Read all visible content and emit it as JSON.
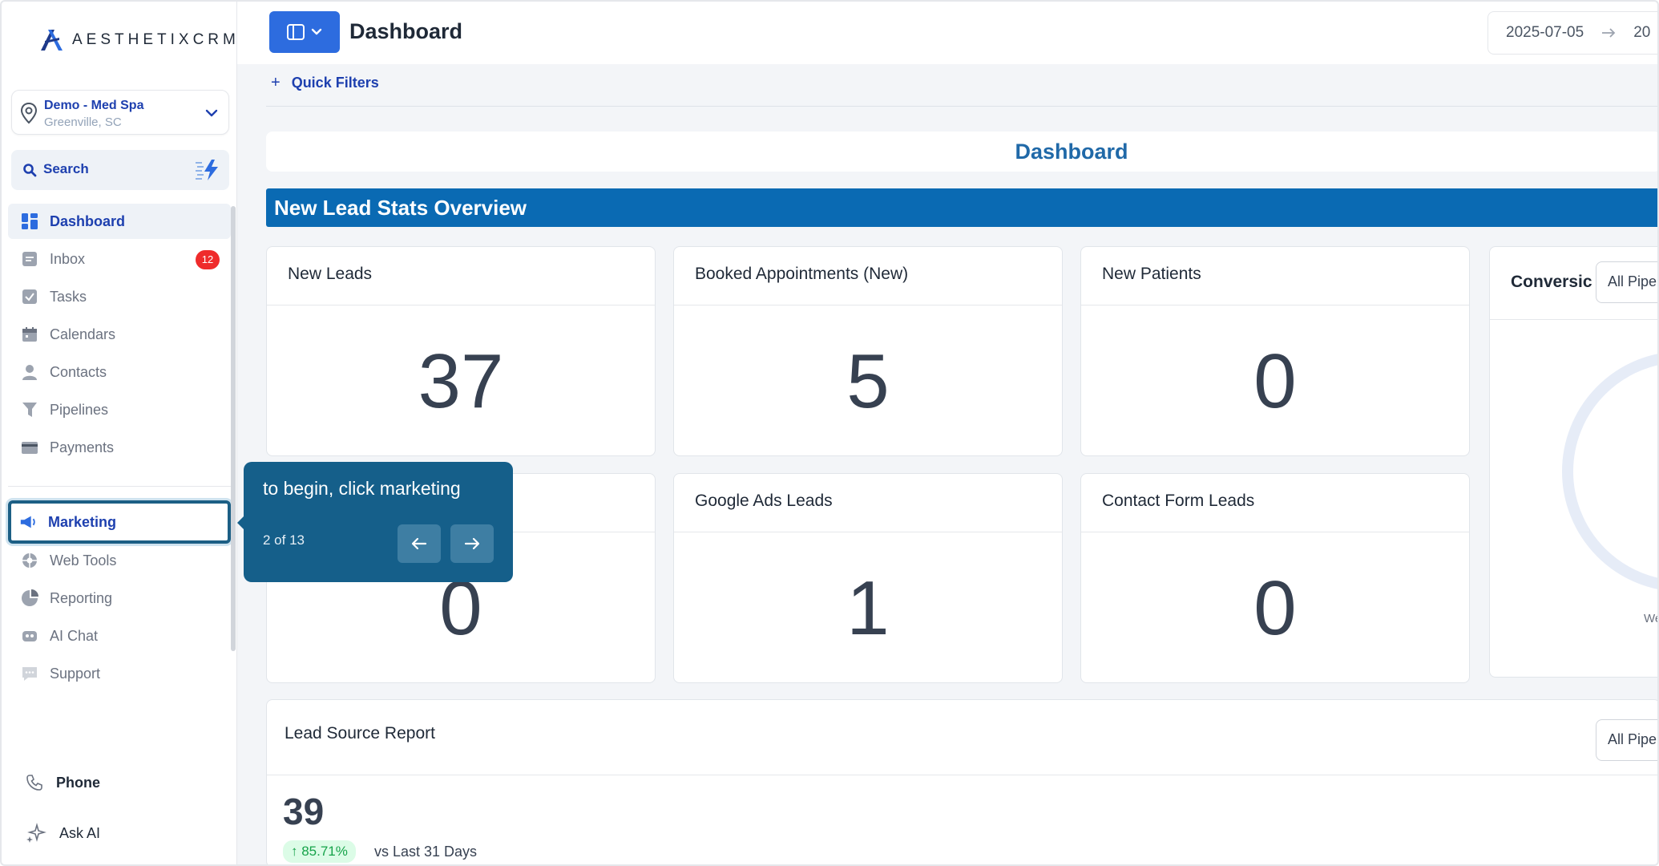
{
  "app": {
    "logo_text": "AESTHETIXCRM",
    "page_title": "Dashboard"
  },
  "location": {
    "name": "Demo - Med Spa",
    "city": "Greenville, SC"
  },
  "search": {
    "label": "Search"
  },
  "sidebar": {
    "items": [
      {
        "label": "Dashboard",
        "icon": "dashboard-icon"
      },
      {
        "label": "Inbox",
        "icon": "inbox-icon",
        "badge": "12"
      },
      {
        "label": "Tasks",
        "icon": "tasks-icon"
      },
      {
        "label": "Calendars",
        "icon": "calendar-icon"
      },
      {
        "label": "Contacts",
        "icon": "contacts-icon"
      },
      {
        "label": "Pipelines",
        "icon": "pipelines-icon"
      },
      {
        "label": "Payments",
        "icon": "payments-icon"
      },
      {
        "label": "Marketing",
        "icon": "megaphone-icon"
      },
      {
        "label": "Web Tools",
        "icon": "web-tools-icon"
      },
      {
        "label": "Reporting",
        "icon": "pie-chart-icon"
      },
      {
        "label": "AI Chat",
        "icon": "ai-chat-icon"
      },
      {
        "label": "Support",
        "icon": "support-icon"
      }
    ],
    "bottom": {
      "phone": "Phone",
      "ask_ai": "Ask AI"
    }
  },
  "topbar": {
    "date_start": "2025-07-05",
    "date_end_partial": "20"
  },
  "filters": {
    "quick_filters": "Quick Filters"
  },
  "dashboard": {
    "header": "Dashboard",
    "section_title": "New Lead Stats Overview",
    "cards": [
      {
        "title": "New Leads",
        "value": "37"
      },
      {
        "title": "Booked Appointments (New)",
        "value": "5"
      },
      {
        "title": "New Patients",
        "value": "0"
      },
      {
        "title": "",
        "value": "0"
      },
      {
        "title": "Google Ads Leads",
        "value": "1"
      },
      {
        "title": "Contact Form Leads",
        "value": "0"
      }
    ],
    "conversion": {
      "title": "Conversic",
      "pipeline": "All Pipe",
      "ring_label": "We"
    },
    "lead_source": {
      "title": "Lead Source Report",
      "pipeline": "All Pipe",
      "total": "39",
      "change": "↑ 85.71%",
      "comparison": "vs Last 31 Days"
    }
  },
  "tooltip": {
    "message": "to begin, click marketing",
    "step": "2 of 13"
  },
  "colors": {
    "accent": "#2d6cdf",
    "section_band": "#0a6ab3",
    "tooltip_bg": "#155f8a",
    "badge": "#ef2b2b",
    "positive": "#16a34a"
  }
}
